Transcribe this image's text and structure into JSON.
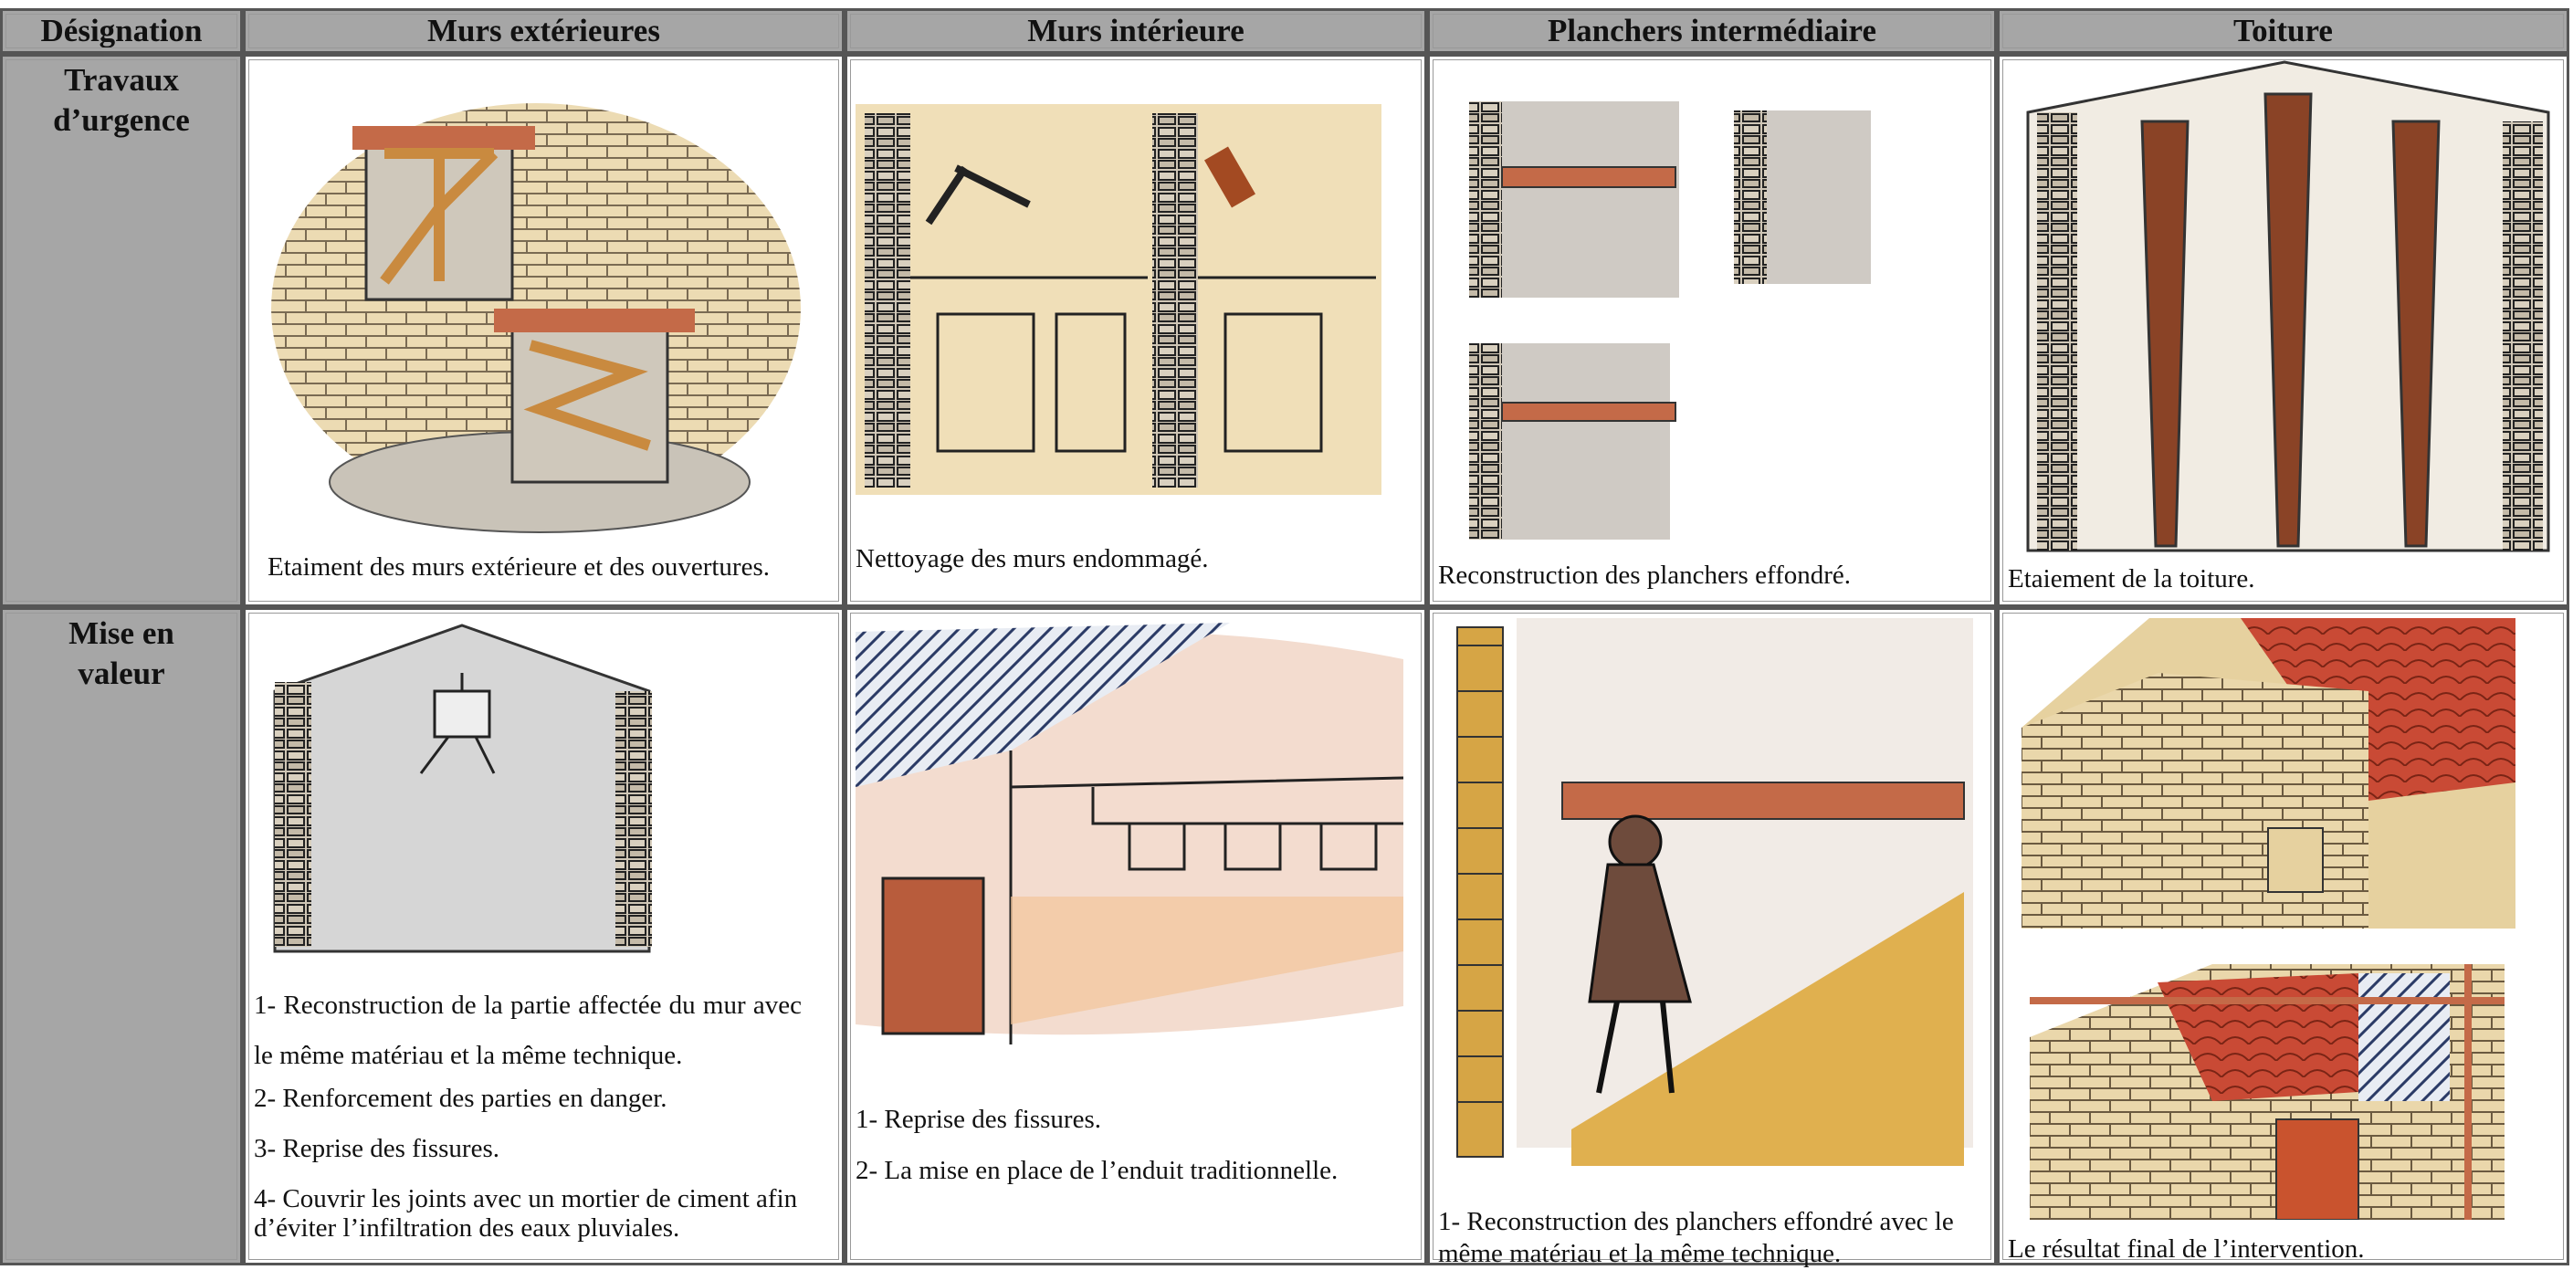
{
  "table": {
    "header": [
      "Désignation",
      "Murs extérieures",
      "Murs intérieure",
      "Planchers intermédiaire",
      "Toiture"
    ],
    "rows": [
      {
        "label": "Travaux d’urgence",
        "cells": [
          [
            "Etaiment des murs extérieure et des ouvertures."
          ],
          [
            "Nettoyage des murs endommagé."
          ],
          [
            "Reconstruction des planchers effondré."
          ],
          [
            "Etaiement de la toiture."
          ]
        ]
      },
      {
        "label": "Mise en valeur",
        "cells": [
          [
            "1- Reconstruction de la partie affectée du mur avec le même matériau et la même technique.",
            "2- Renforcement des parties en danger.",
            "3- Reprise des fissures.",
            "4- Couvrir les joints avec un mortier de ciment afin d’éviter l’infiltration des eaux pluviales."
          ],
          [
            "1- Reprise des fissures.",
            "2- La mise en place de l’enduit traditionnelle."
          ],
          [
            "1- Reconstruction des planchers effondré avec le même matériau et la même technique."
          ],
          [
            "Le résultat final de l’intervention."
          ]
        ]
      }
    ]
  }
}
